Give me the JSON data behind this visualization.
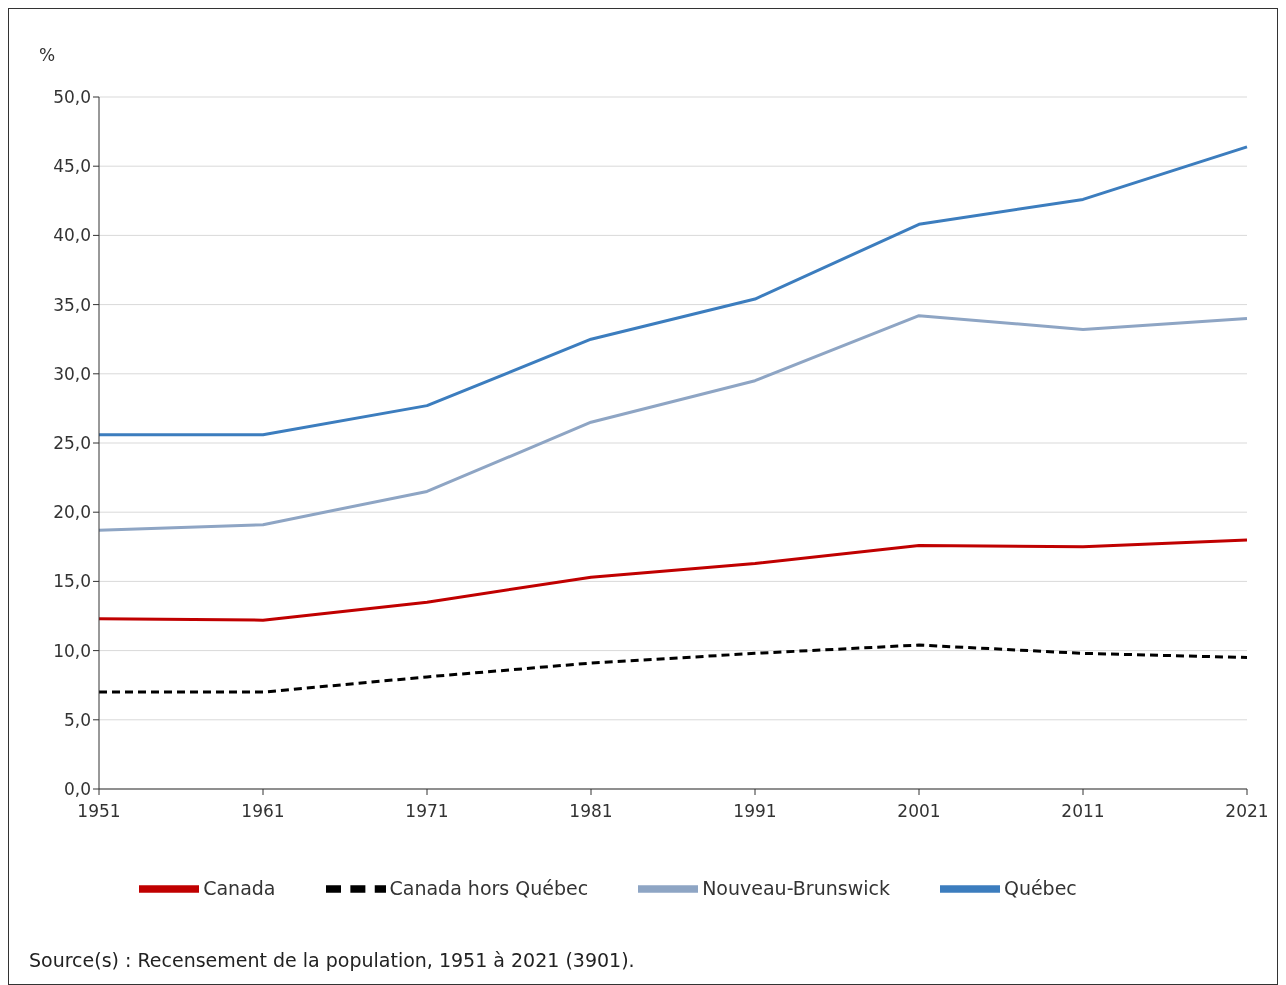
{
  "chart_data": {
    "type": "line",
    "ylabel": "%",
    "categories": [
      "1951",
      "1961",
      "1971",
      "1981",
      "1991",
      "2001",
      "2011",
      "2021"
    ],
    "series": [
      {
        "name": "Canada",
        "color": "#c00000",
        "line_style": "solid",
        "values": [
          12.3,
          12.2,
          13.5,
          15.3,
          16.3,
          17.6,
          17.5,
          18.0
        ]
      },
      {
        "name": "Canada hors Québec",
        "color": "#000000",
        "line_style": "dashed",
        "values": [
          7.0,
          7.0,
          8.1,
          9.1,
          9.8,
          10.4,
          9.8,
          9.5
        ]
      },
      {
        "name": "Québec",
        "color": "#3c7dbe",
        "line_style": "solid",
        "values": [
          25.6,
          25.6,
          27.7,
          32.5,
          35.4,
          40.8,
          42.6,
          46.4
        ]
      },
      {
        "name": "Nouveau-Brunswick",
        "color": "#8ea5c4",
        "line_style": "solid",
        "values": [
          18.7,
          19.1,
          21.5,
          26.5,
          29.5,
          34.2,
          33.2,
          34.0
        ]
      }
    ],
    "ylim": [
      0,
      50
    ],
    "yticks": [
      {
        "value": 0,
        "label": "0,0"
      },
      {
        "value": 5,
        "label": "5,0"
      },
      {
        "value": 10,
        "label": "10,0"
      },
      {
        "value": 15,
        "label": "15,0"
      },
      {
        "value": 20,
        "label": "20,0"
      },
      {
        "value": 25,
        "label": "25,0"
      },
      {
        "value": 30,
        "label": "30,0"
      },
      {
        "value": 35,
        "label": "35,0"
      },
      {
        "value": 40,
        "label": "40,0"
      },
      {
        "value": 45,
        "label": "45,0"
      },
      {
        "value": 50,
        "label": "50,0"
      }
    ],
    "grid": "y",
    "legend": "bottom",
    "marker": "none",
    "annotations": [
      "Source(s) : Recensement de la population, 1951 à 2021 (3901)."
    ]
  }
}
